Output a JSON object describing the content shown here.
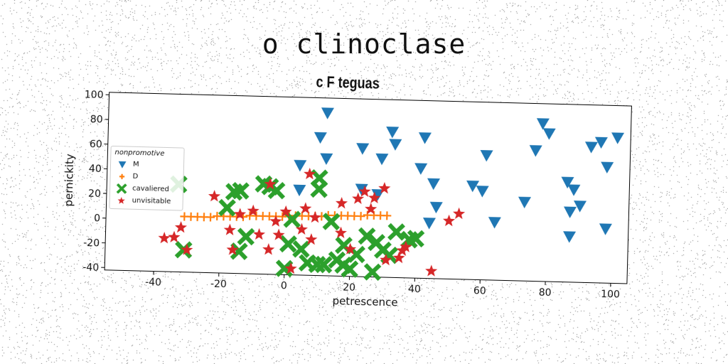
{
  "suptitle": "o clinoclase",
  "chart_data": {
    "type": "scatter",
    "title": "c F teguas",
    "xlabel": "petrescence",
    "ylabel": "pernickity",
    "xlim": [
      -55,
      105
    ],
    "ylim": [
      -42,
      102
    ],
    "xticks": [
      -40,
      -20,
      0,
      20,
      40,
      60,
      80,
      100
    ],
    "yticks": [
      -40,
      -20,
      0,
      20,
      40,
      60,
      80,
      100
    ],
    "legend": {
      "title": "nonpromotive",
      "placement": "center-left"
    },
    "series": [
      {
        "name": "M",
        "marker": "triangle-down",
        "color": "#1f77b4",
        "points": [
          [
            12,
            90
          ],
          [
            10,
            70
          ],
          [
            12,
            53
          ],
          [
            4,
            47
          ],
          [
            4,
            27
          ],
          [
            23,
            62
          ],
          [
            29,
            54
          ],
          [
            32,
            76
          ],
          [
            33,
            66
          ],
          [
            23,
            29
          ],
          [
            28,
            25
          ],
          [
            42,
            72
          ],
          [
            41,
            47
          ],
          [
            45,
            35
          ],
          [
            46,
            16
          ],
          [
            44,
            3
          ],
          [
            61,
            59
          ],
          [
            57,
            34
          ],
          [
            60,
            30
          ],
          [
            64,
            5
          ],
          [
            73,
            22
          ],
          [
            78,
            86
          ],
          [
            80,
            78
          ],
          [
            76,
            64
          ],
          [
            86,
            39
          ],
          [
            88,
            33
          ],
          [
            87,
            15
          ],
          [
            87,
            -5
          ],
          [
            90,
            20
          ],
          [
            93,
            68
          ],
          [
            96,
            72
          ],
          [
            98,
            52
          ],
          [
            98,
            2
          ],
          [
            101,
            76
          ]
        ]
      },
      {
        "name": "D",
        "marker": "plus",
        "color": "#ff7f0e",
        "points": [
          [
            -31,
            3
          ],
          [
            -29,
            3
          ],
          [
            -27,
            3
          ],
          [
            -25,
            3
          ],
          [
            -23,
            3
          ],
          [
            -21,
            4
          ],
          [
            -19,
            4
          ],
          [
            -17,
            4
          ],
          [
            -15,
            4
          ],
          [
            -13,
            4
          ],
          [
            -11,
            5
          ],
          [
            -9,
            5
          ],
          [
            -7,
            5
          ],
          [
            -5,
            5
          ],
          [
            -3,
            5
          ],
          [
            -1,
            5
          ],
          [
            1,
            6
          ],
          [
            3,
            6
          ],
          [
            5,
            6
          ],
          [
            7,
            6
          ],
          [
            9,
            6
          ],
          [
            11,
            6
          ],
          [
            13,
            7
          ],
          [
            15,
            7
          ],
          [
            17,
            7
          ],
          [
            19,
            7
          ],
          [
            21,
            7
          ],
          [
            23,
            7
          ],
          [
            25,
            8
          ],
          [
            27,
            8
          ],
          [
            29,
            8
          ],
          [
            31,
            8
          ]
        ]
      },
      {
        "name": "cavaliered",
        "marker": "x-thick",
        "color": "#2ca02c",
        "points": [
          [
            -33,
            29
          ],
          [
            -31,
            -24
          ],
          [
            -18,
            11
          ],
          [
            -16,
            24
          ],
          [
            -14,
            25
          ],
          [
            -12,
            -12
          ],
          [
            -14,
            -24
          ],
          [
            -7,
            31
          ],
          [
            -5,
            29
          ],
          [
            -3,
            26
          ],
          [
            1,
            -17
          ],
          [
            0,
            -37
          ],
          [
            2,
            3
          ],
          [
            5,
            -21
          ],
          [
            7,
            -32
          ],
          [
            10,
            -33
          ],
          [
            10,
            37
          ],
          [
            10,
            28
          ],
          [
            12,
            -33
          ],
          [
            14,
            2
          ],
          [
            16,
            -29
          ],
          [
            18,
            -17
          ],
          [
            18,
            -33
          ],
          [
            20,
            -36
          ],
          [
            22,
            -24
          ],
          [
            25,
            -9
          ],
          [
            27,
            -38
          ],
          [
            28,
            -14
          ],
          [
            30,
            -20
          ],
          [
            32,
            -24
          ],
          [
            34,
            -5
          ],
          [
            38,
            -11
          ],
          [
            40,
            -10
          ]
        ]
      },
      {
        "name": "unvisitable",
        "marker": "star",
        "color": "#d62728",
        "points": [
          [
            -37,
            -15
          ],
          [
            -34,
            -14
          ],
          [
            -32,
            -6
          ],
          [
            -30,
            -24
          ],
          [
            -22,
            20
          ],
          [
            -17,
            -7
          ],
          [
            -16,
            -23
          ],
          [
            -14,
            6
          ],
          [
            -10,
            9
          ],
          [
            -8,
            -10
          ],
          [
            -5,
            31
          ],
          [
            -5,
            -22
          ],
          [
            -3,
            1
          ],
          [
            -2,
            -10
          ],
          [
            0,
            9
          ],
          [
            2,
            -37
          ],
          [
            5,
            -5
          ],
          [
            6,
            12
          ],
          [
            7,
            40
          ],
          [
            8,
            -13
          ],
          [
            9,
            5
          ],
          [
            17,
            -7
          ],
          [
            17,
            17
          ],
          [
            20,
            -20
          ],
          [
            22,
            21
          ],
          [
            24,
            27
          ],
          [
            26,
            13
          ],
          [
            27,
            22
          ],
          [
            30,
            30
          ],
          [
            31,
            -28
          ],
          [
            35,
            -26
          ],
          [
            36,
            -20
          ],
          [
            37,
            -17
          ],
          [
            45,
            -36
          ],
          [
            50,
            5
          ],
          [
            53,
            11
          ]
        ]
      }
    ]
  }
}
